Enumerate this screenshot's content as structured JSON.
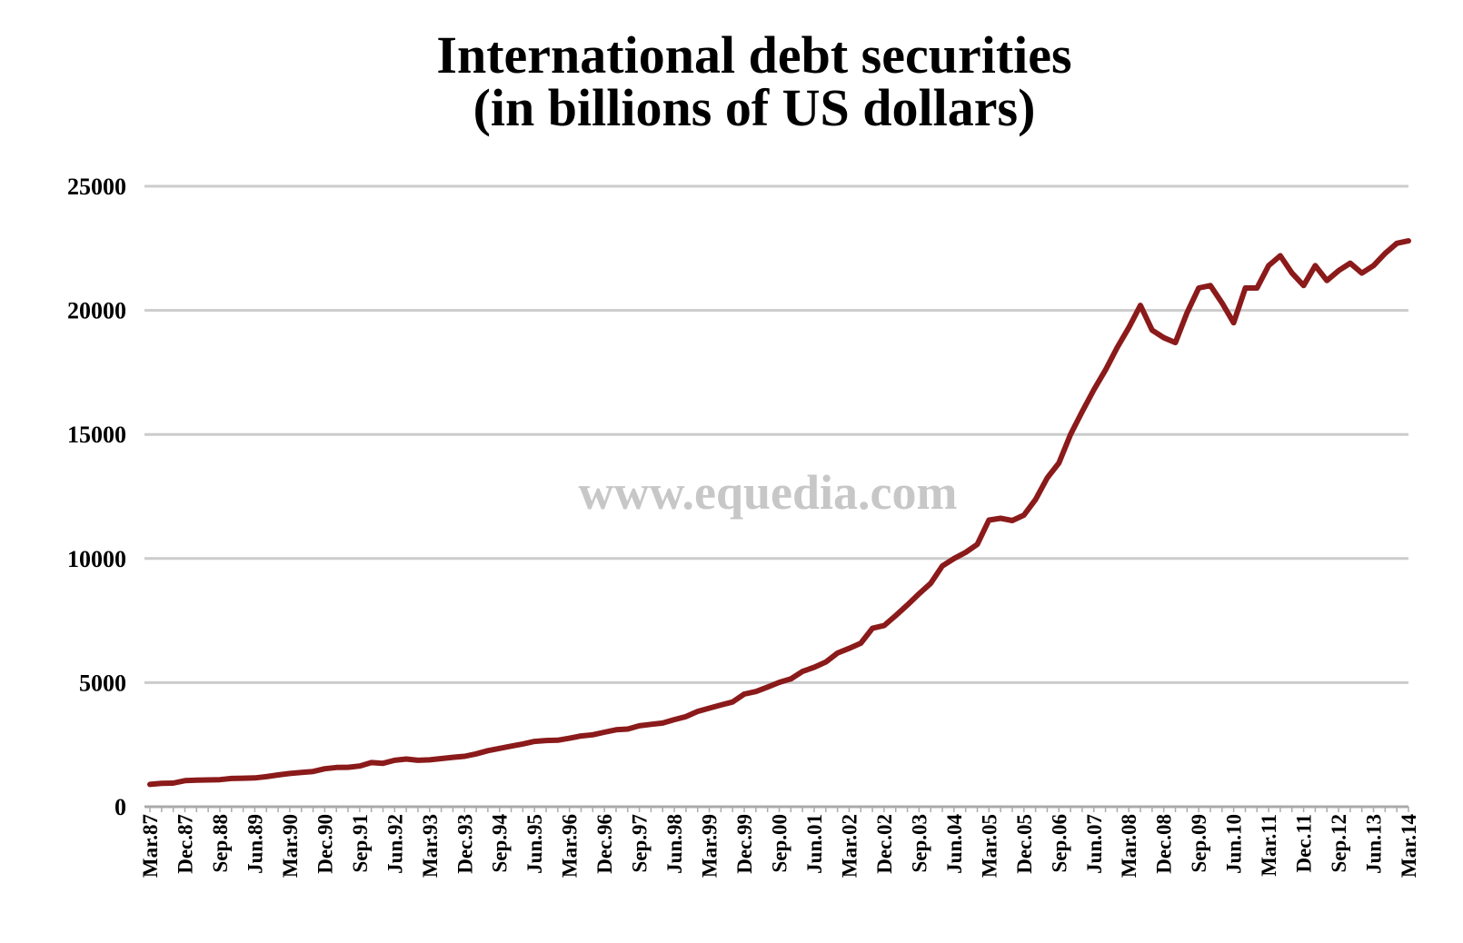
{
  "watermark": "www.equedia.com",
  "chart_data": {
    "type": "line",
    "title_lines": [
      "International debt securities",
      "(in billions of US dollars)"
    ],
    "xlabel": "",
    "ylabel": "",
    "ylim": [
      0,
      25000
    ],
    "yticks": [
      0,
      5000,
      10000,
      15000,
      20000,
      25000
    ],
    "grid": "horizontal",
    "legend": "none",
    "line_color": "#8b1a1a",
    "x_tick_labels": [
      "Mar.87",
      "Dec.87",
      "Sep.88",
      "Jun.89",
      "Mar.90",
      "Dec.90",
      "Sep.91",
      "Jun.92",
      "Mar.93",
      "Dec.93",
      "Sep.94",
      "Jun.95",
      "Mar.96",
      "Dec.96",
      "Sep.97",
      "Jun.98",
      "Mar.99",
      "Dec.99",
      "Sep.00",
      "Jun.01",
      "Mar.02",
      "Dec.02",
      "Sep.03",
      "Jun.04",
      "Mar.05",
      "Dec.05",
      "Sep.06",
      "Jun.07",
      "Mar.08",
      "Dec.08",
      "Sep.09",
      "Jun.10",
      "Mar.11",
      "Dec.11",
      "Sep.12",
      "Jun.13",
      "Mar.14"
    ],
    "x": [
      "Mar.87",
      "Jun.87",
      "Sep.87",
      "Dec.87",
      "Mar.88",
      "Jun.88",
      "Sep.88",
      "Dec.88",
      "Mar.89",
      "Jun.89",
      "Sep.89",
      "Dec.89",
      "Mar.90",
      "Jun.90",
      "Sep.90",
      "Dec.90",
      "Mar.91",
      "Jun.91",
      "Sep.91",
      "Dec.91",
      "Mar.92",
      "Jun.92",
      "Sep.92",
      "Dec.92",
      "Mar.93",
      "Jun.93",
      "Sep.93",
      "Dec.93",
      "Mar.94",
      "Jun.94",
      "Sep.94",
      "Dec.94",
      "Mar.95",
      "Jun.95",
      "Sep.95",
      "Dec.95",
      "Mar.96",
      "Jun.96",
      "Sep.96",
      "Dec.96",
      "Mar.97",
      "Jun.97",
      "Sep.97",
      "Dec.97",
      "Mar.98",
      "Jun.98",
      "Sep.98",
      "Dec.98",
      "Mar.99",
      "Jun.99",
      "Sep.99",
      "Dec.99",
      "Mar.00",
      "Jun.00",
      "Sep.00",
      "Dec.00",
      "Mar.01",
      "Jun.01",
      "Sep.01",
      "Dec.01",
      "Mar.02",
      "Jun.02",
      "Sep.02",
      "Dec.02",
      "Mar.03",
      "Jun.03",
      "Sep.03",
      "Dec.03",
      "Mar.04",
      "Jun.04",
      "Sep.04",
      "Dec.04",
      "Mar.05",
      "Jun.05",
      "Sep.05",
      "Dec.05",
      "Mar.06",
      "Jun.06",
      "Sep.06",
      "Dec.06",
      "Mar.07",
      "Jun.07",
      "Sep.07",
      "Dec.07",
      "Mar.08",
      "Jun.08",
      "Sep.08",
      "Dec.08",
      "Mar.09",
      "Jun.09",
      "Sep.09",
      "Dec.09",
      "Mar.10",
      "Jun.10",
      "Sep.10",
      "Dec.10",
      "Mar.11",
      "Jun.11",
      "Sep.11",
      "Dec.11",
      "Mar.12",
      "Jun.12",
      "Sep.12",
      "Dec.12",
      "Mar.13",
      "Jun.13",
      "Sep.13",
      "Dec.13",
      "Mar.14"
    ],
    "series": [
      {
        "values": [
          900,
          940,
          950,
          1050,
          1070,
          1080,
          1090,
          1140,
          1150,
          1160,
          1210,
          1280,
          1340,
          1380,
          1420,
          1530,
          1580,
          1590,
          1640,
          1780,
          1750,
          1870,
          1920,
          1870,
          1890,
          1940,
          1990,
          2030,
          2130,
          2260,
          2350,
          2440,
          2530,
          2630,
          2670,
          2680,
          2760,
          2850,
          2900,
          3000,
          3100,
          3130,
          3260,
          3320,
          3370,
          3510,
          3630,
          3840,
          3970,
          4100,
          4220,
          4540,
          4640,
          4820,
          5010,
          5150,
          5450,
          5620,
          5830,
          6190,
          6380,
          6590,
          7190,
          7300,
          7700,
          8130,
          8580,
          9000,
          9700,
          10000,
          10250,
          10570,
          11550,
          11620,
          11530,
          11750,
          12380,
          13250,
          13850,
          15000,
          15920,
          16800,
          17600,
          18500,
          19300,
          20200,
          19200,
          18900,
          18700,
          19900,
          20900,
          21000,
          20300,
          19500,
          20900,
          20900,
          21800,
          22200,
          21500,
          21000,
          21800,
          21200,
          21600,
          21900,
          21500,
          21800,
          22300,
          22700,
          22800
        ]
      }
    ]
  }
}
